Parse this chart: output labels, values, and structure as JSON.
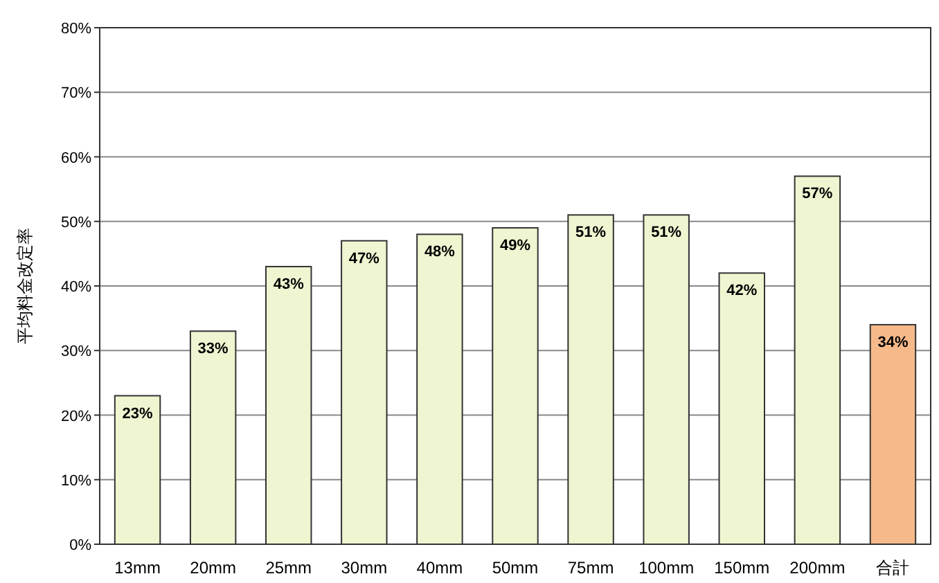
{
  "chart_data": {
    "type": "bar",
    "ylabel": "平均料金改定率",
    "categories": [
      "13mm",
      "20mm",
      "25mm",
      "30mm",
      "40mm",
      "50mm",
      "75mm",
      "100mm",
      "150mm",
      "200mm",
      "合計"
    ],
    "values": [
      23,
      33,
      43,
      47,
      48,
      49,
      51,
      51,
      42,
      57,
      34
    ],
    "colors": [
      "#eef5d0",
      "#eef5d0",
      "#eef5d0",
      "#eef5d0",
      "#eef5d0",
      "#eef5d0",
      "#eef5d0",
      "#eef5d0",
      "#eef5d0",
      "#eef5d0",
      "#f6b98a"
    ],
    "value_labels": [
      "23%",
      "33%",
      "43%",
      "47%",
      "48%",
      "49%",
      "51%",
      "51%",
      "42%",
      "57%",
      "34%"
    ],
    "ylim": [
      0,
      80
    ],
    "yticks": [
      {
        "value": 0,
        "label": "0%"
      },
      {
        "value": 10,
        "label": "10%"
      },
      {
        "value": 20,
        "label": "20%"
      },
      {
        "value": 30,
        "label": "30%"
      },
      {
        "value": 40,
        "label": "40%"
      },
      {
        "value": 50,
        "label": "50%"
      },
      {
        "value": 60,
        "label": "60%"
      },
      {
        "value": 70,
        "label": "70%"
      },
      {
        "value": 80,
        "label": "80%"
      }
    ],
    "grid": "y"
  }
}
